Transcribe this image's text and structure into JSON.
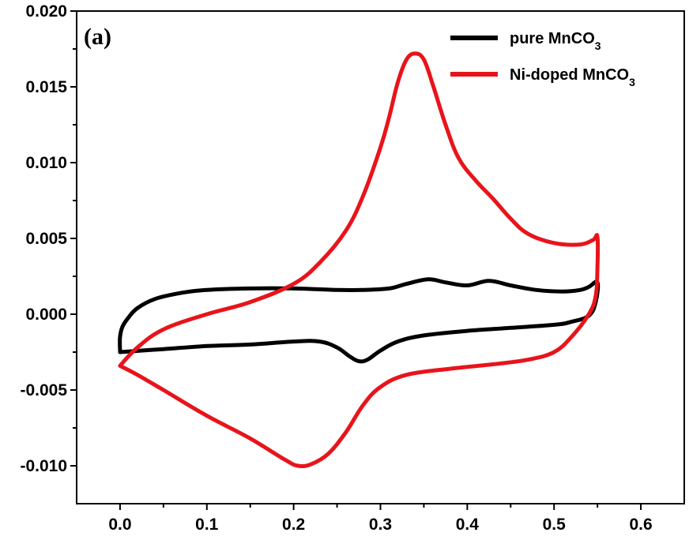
{
  "chart_data": {
    "type": "line",
    "panel_label": "(a)",
    "title": "",
    "xlabel": "",
    "ylabel": "",
    "xlim": [
      -0.05,
      0.65
    ],
    "ylim": [
      -0.0125,
      0.02
    ],
    "x_ticks": [
      {
        "value": 0.0,
        "label": "0.0"
      },
      {
        "value": 0.1,
        "label": "0.1"
      },
      {
        "value": 0.2,
        "label": "0.2"
      },
      {
        "value": 0.3,
        "label": "0.3"
      },
      {
        "value": 0.4,
        "label": "0.4"
      },
      {
        "value": 0.5,
        "label": "0.5"
      },
      {
        "value": 0.6,
        "label": "0.6"
      }
    ],
    "y_ticks": [
      {
        "value": 0.02,
        "label": "0.020"
      },
      {
        "value": 0.015,
        "label": "0.015"
      },
      {
        "value": 0.01,
        "label": "0.010"
      },
      {
        "value": 0.005,
        "label": "0.005"
      },
      {
        "value": 0.0,
        "label": "0.000"
      },
      {
        "value": -0.005,
        "label": "-0.005"
      },
      {
        "value": -0.01,
        "label": "-0.010"
      }
    ],
    "legend_position": "top-right",
    "series": [
      {
        "name": "pure MnCO",
        "name_subscript": "3",
        "color": "#000000",
        "points": [
          [
            0.0,
            -0.0024
          ],
          [
            0.0,
            -0.0015
          ],
          [
            0.003,
            -0.0008
          ],
          [
            0.01,
            -0.0002
          ],
          [
            0.02,
            0.0004
          ],
          [
            0.04,
            0.001
          ],
          [
            0.07,
            0.0014
          ],
          [
            0.1,
            0.0016
          ],
          [
            0.15,
            0.0017
          ],
          [
            0.2,
            0.0017
          ],
          [
            0.25,
            0.0016
          ],
          [
            0.28,
            0.0016
          ],
          [
            0.31,
            0.0017
          ],
          [
            0.33,
            0.002
          ],
          [
            0.355,
            0.0023
          ],
          [
            0.375,
            0.0021
          ],
          [
            0.4,
            0.0019
          ],
          [
            0.425,
            0.0022
          ],
          [
            0.45,
            0.0019
          ],
          [
            0.48,
            0.0016
          ],
          [
            0.51,
            0.0015
          ],
          [
            0.53,
            0.0016
          ],
          [
            0.54,
            0.0018
          ],
          [
            0.55,
            0.0021
          ],
          [
            0.548,
            0.0008
          ],
          [
            0.54,
            -0.0001
          ],
          [
            0.52,
            -0.0005
          ],
          [
            0.5,
            -0.0007
          ],
          [
            0.45,
            -0.0009
          ],
          [
            0.4,
            -0.0011
          ],
          [
            0.35,
            -0.0014
          ],
          [
            0.32,
            -0.0018
          ],
          [
            0.3,
            -0.0024
          ],
          [
            0.285,
            -0.003
          ],
          [
            0.275,
            -0.0031
          ],
          [
            0.265,
            -0.0028
          ],
          [
            0.25,
            -0.0022
          ],
          [
            0.23,
            -0.0018
          ],
          [
            0.2,
            -0.0018
          ],
          [
            0.15,
            -0.002
          ],
          [
            0.1,
            -0.0021
          ],
          [
            0.05,
            -0.0023
          ],
          [
            0.0,
            -0.0025
          ]
        ]
      },
      {
        "name": "Ni-doped MnCO",
        "name_subscript": "3",
        "color": "#e8141b",
        "points": [
          [
            0.0,
            -0.0034
          ],
          [
            0.02,
            -0.0022
          ],
          [
            0.05,
            -0.001
          ],
          [
            0.1,
            0.0
          ],
          [
            0.15,
            0.0008
          ],
          [
            0.2,
            0.002
          ],
          [
            0.23,
            0.0034
          ],
          [
            0.26,
            0.0055
          ],
          [
            0.28,
            0.0078
          ],
          [
            0.3,
            0.011
          ],
          [
            0.31,
            0.013
          ],
          [
            0.32,
            0.0153
          ],
          [
            0.33,
            0.0168
          ],
          [
            0.34,
            0.0172
          ],
          [
            0.35,
            0.0168
          ],
          [
            0.36,
            0.0152
          ],
          [
            0.375,
            0.0125
          ],
          [
            0.39,
            0.0103
          ],
          [
            0.41,
            0.0088
          ],
          [
            0.43,
            0.0076
          ],
          [
            0.45,
            0.0063
          ],
          [
            0.47,
            0.0053
          ],
          [
            0.5,
            0.0047
          ],
          [
            0.53,
            0.0046
          ],
          [
            0.545,
            0.0049
          ],
          [
            0.55,
            0.0051
          ],
          [
            0.55,
            0.003
          ],
          [
            0.548,
            0.0012
          ],
          [
            0.54,
            0.0
          ],
          [
            0.52,
            -0.0015
          ],
          [
            0.5,
            -0.0025
          ],
          [
            0.47,
            -0.003
          ],
          [
            0.43,
            -0.0033
          ],
          [
            0.38,
            -0.0036
          ],
          [
            0.33,
            -0.004
          ],
          [
            0.3,
            -0.0048
          ],
          [
            0.28,
            -0.006
          ],
          [
            0.26,
            -0.0078
          ],
          [
            0.24,
            -0.0092
          ],
          [
            0.22,
            -0.0099
          ],
          [
            0.205,
            -0.01
          ],
          [
            0.19,
            -0.0096
          ],
          [
            0.15,
            -0.0082
          ],
          [
            0.1,
            -0.0067
          ],
          [
            0.05,
            -0.005
          ],
          [
            0.02,
            -0.004
          ],
          [
            0.0,
            -0.0034
          ]
        ]
      }
    ]
  }
}
